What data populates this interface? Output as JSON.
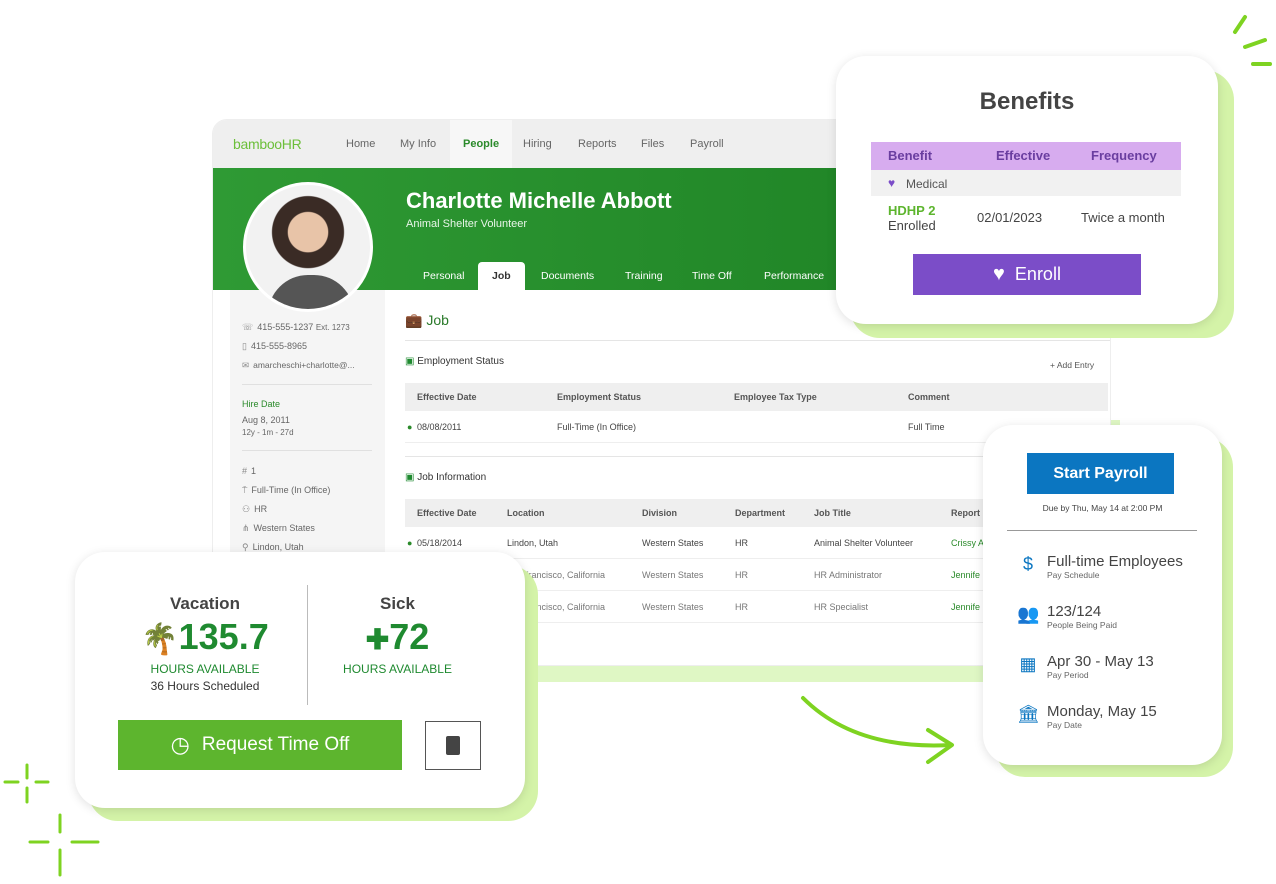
{
  "app": {
    "logo": "bambooHR",
    "nav": [
      "Home",
      "My Info",
      "People",
      "Hiring",
      "Reports",
      "Files",
      "Payroll"
    ],
    "nav_active": "People",
    "employee": {
      "name": "Charlotte Michelle Abbott",
      "title": "Animal Shelter Volunteer"
    },
    "tabs": [
      "Personal",
      "Job",
      "Documents",
      "Training",
      "Time Off",
      "Performance"
    ],
    "tab_active": "Job",
    "sidebar": {
      "work_phone": "415-555-1237",
      "ext": "Ext. 1273",
      "mobile": "415-555-8965",
      "email": "amarcheschi+charlotte@...",
      "hire_date_label": "Hire Date",
      "hire_date": "Aug 8, 2011",
      "tenure": "12y - 1m - 27d",
      "employee_number": "1",
      "employment": "Full-Time (In Office)",
      "department": "HR",
      "division": "Western States",
      "location": "Lindon, Utah"
    },
    "job": {
      "heading": "Job",
      "employment_status": {
        "title": "Employment Status",
        "add_entry": "+ Add Entry",
        "columns": [
          "Effective Date",
          "Employment Status",
          "Employee Tax Type",
          "Comment"
        ],
        "rows": [
          [
            "08/08/2011",
            "Full-Time (In Office)",
            "",
            "Full Time"
          ]
        ]
      },
      "job_information": {
        "title": "Job Information",
        "columns": [
          "Effective Date",
          "Location",
          "Division",
          "Department",
          "Job Title",
          "Report"
        ],
        "rows": [
          [
            "05/18/2014",
            "Lindon, Utah",
            "Western States",
            "HR",
            "Animal Shelter Volunteer",
            "Crissy A"
          ],
          [
            "",
            "Francisco, California",
            "Western States",
            "HR",
            "HR Administrator",
            "Jennife"
          ],
          [
            "",
            "Francisco, California",
            "Western States",
            "HR",
            "HR Specialist",
            "Jennife"
          ]
        ]
      }
    }
  },
  "benefits": {
    "title": "Benefits",
    "columns": [
      "Benefit",
      "Effective",
      "Frequency"
    ],
    "category": "Medical",
    "plan": "HDHP 2",
    "status": "Enrolled",
    "effective": "02/01/2023",
    "frequency": "Twice a month",
    "enroll_label": "Enroll",
    "accent": "#7b4dc8"
  },
  "payroll": {
    "start_label": "Start Payroll",
    "due": "Due by Thu, May 14 at 2:00 PM",
    "items": [
      {
        "icon": "calendar-dollar-icon",
        "main": "Full-time Employees",
        "sub": "Pay Schedule"
      },
      {
        "icon": "users-icon",
        "main": "123/124",
        "sub": "People Being Paid"
      },
      {
        "icon": "calendar-icon",
        "main": "Apr 30 - May 13",
        "sub": "Pay Period"
      },
      {
        "icon": "bank-icon",
        "main": "Monday, May 15",
        "sub": "Pay Date"
      }
    ],
    "accent": "#0b76c1"
  },
  "time_off": {
    "vacation": {
      "label": "Vacation",
      "hours": "135.7",
      "available": "HOURS AVAILABLE",
      "scheduled": "36 Hours Scheduled"
    },
    "sick": {
      "label": "Sick",
      "hours": "72",
      "available": "HOURS AVAILABLE"
    },
    "request_label": "Request Time Off",
    "accent": "#5db52e"
  }
}
